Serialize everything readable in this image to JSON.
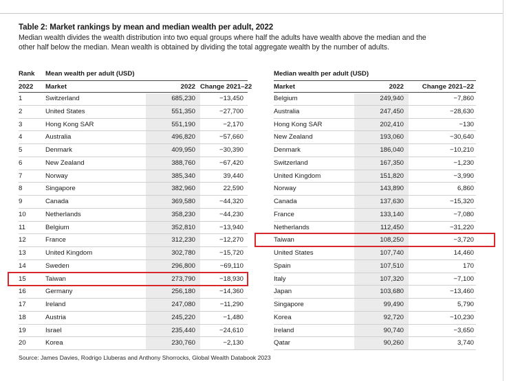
{
  "title": "Table 2: Market rankings by mean and median wealth per adult, 2022",
  "subtitle_line1": "Median wealth divides the wealth distribution into two equal groups where half the adults have wealth above the median and the",
  "subtitle_line2": "other half below the median. Mean wealth is obtained by dividing the total aggregate wealth by the number of adults.",
  "mean_table": {
    "rank_label": "Rank",
    "group_label": "Mean wealth per adult (USD)",
    "columns": [
      "2022",
      "Market",
      "2022",
      "Change 2021–22"
    ],
    "rows": [
      {
        "rank": "1",
        "market": "Switzerland",
        "value": "685,230",
        "change": "−13,450"
      },
      {
        "rank": "2",
        "market": "United States",
        "value": "551,350",
        "change": "−27,700"
      },
      {
        "rank": "3",
        "market": "Hong Kong SAR",
        "value": "551,190",
        "change": "−2,170"
      },
      {
        "rank": "4",
        "market": "Australia",
        "value": "496,820",
        "change": "−57,660"
      },
      {
        "rank": "5",
        "market": "Denmark",
        "value": "409,950",
        "change": "−30,390"
      },
      {
        "rank": "6",
        "market": "New Zealand",
        "value": "388,760",
        "change": "−67,420"
      },
      {
        "rank": "7",
        "market": "Norway",
        "value": "385,340",
        "change": "39,440"
      },
      {
        "rank": "8",
        "market": "Singapore",
        "value": "382,960",
        "change": "22,590"
      },
      {
        "rank": "9",
        "market": "Canada",
        "value": "369,580",
        "change": "−44,320"
      },
      {
        "rank": "10",
        "market": "Netherlands",
        "value": "358,230",
        "change": "−44,230"
      },
      {
        "rank": "11",
        "market": "Belgium",
        "value": "352,810",
        "change": "−13,940"
      },
      {
        "rank": "12",
        "market": "France",
        "value": "312,230",
        "change": "−12,270"
      },
      {
        "rank": "13",
        "market": "United Kingdom",
        "value": "302,780",
        "change": "−15,720"
      },
      {
        "rank": "14",
        "market": "Sweden",
        "value": "296,800",
        "change": "−69,110"
      },
      {
        "rank": "15",
        "market": "Taiwan",
        "value": "273,790",
        "change": "−18,930"
      },
      {
        "rank": "16",
        "market": "Germany",
        "value": "256,180",
        "change": "−14,360"
      },
      {
        "rank": "17",
        "market": "Ireland",
        "value": "247,080",
        "change": "−11,290"
      },
      {
        "rank": "18",
        "market": "Austria",
        "value": "245,220",
        "change": "−1,480"
      },
      {
        "rank": "19",
        "market": "Israel",
        "value": "235,440",
        "change": "−24,610"
      },
      {
        "rank": "20",
        "market": "Korea",
        "value": "230,760",
        "change": "−2,130"
      }
    ]
  },
  "median_table": {
    "group_label": "Median wealth per adult (USD)",
    "columns": [
      "Market",
      "2022",
      "Change 2021–22"
    ],
    "rows": [
      {
        "market": "Belgium",
        "value": "249,940",
        "change": "−7,860"
      },
      {
        "market": "Australia",
        "value": "247,450",
        "change": "−28,630"
      },
      {
        "market": "Hong Kong SAR",
        "value": "202,410",
        "change": "−130"
      },
      {
        "market": "New Zealand",
        "value": "193,060",
        "change": "−30,640"
      },
      {
        "market": "Denmark",
        "value": "186,040",
        "change": "−10,210"
      },
      {
        "market": "Switzerland",
        "value": "167,350",
        "change": "−1,230"
      },
      {
        "market": "United Kingdom",
        "value": "151,820",
        "change": "−3,990"
      },
      {
        "market": "Norway",
        "value": "143,890",
        "change": "6,860"
      },
      {
        "market": "Canada",
        "value": "137,630",
        "change": "−15,320"
      },
      {
        "market": "France",
        "value": "133,140",
        "change": "−7,080"
      },
      {
        "market": "Netherlands",
        "value": "112,450",
        "change": "−31,220"
      },
      {
        "market": "Taiwan",
        "value": "108,250",
        "change": "−3,720"
      },
      {
        "market": "United States",
        "value": "107,740",
        "change": "14,460"
      },
      {
        "market": "Spain",
        "value": "107,510",
        "change": "170"
      },
      {
        "market": "Italy",
        "value": "107,320",
        "change": "−7,100"
      },
      {
        "market": "Japan",
        "value": "103,680",
        "change": "−13,460"
      },
      {
        "market": "Singapore",
        "value": "99,490",
        "change": "5,790"
      },
      {
        "market": "Korea",
        "value": "92,720",
        "change": "−10,230"
      },
      {
        "market": "Ireland",
        "value": "90,740",
        "change": "−3,650"
      },
      {
        "market": "Qatar",
        "value": "90,260",
        "change": "3,740"
      }
    ]
  },
  "highlight_color": "#d9262c",
  "source": "Source: James Davies, Rodrigo Lluberas and Anthony Shorrocks, Global Wealth Databook 2023"
}
